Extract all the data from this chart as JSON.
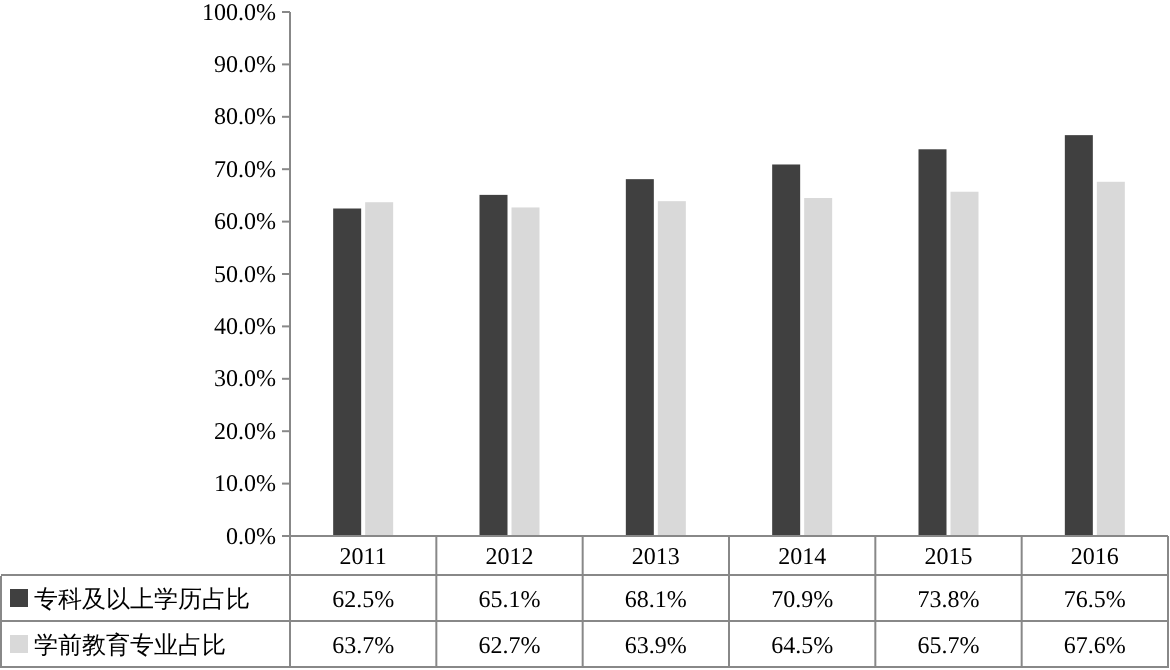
{
  "chart_data": {
    "type": "bar",
    "categories": [
      "2011",
      "2012",
      "2013",
      "2014",
      "2015",
      "2016"
    ],
    "series": [
      {
        "name": "专科及以上学历占比",
        "color": "#404040",
        "values": [
          62.5,
          65.1,
          68.1,
          70.9,
          73.8,
          76.5
        ],
        "value_labels": [
          "62.5%",
          "65.1%",
          "68.1%",
          "70.9%",
          "73.8%",
          "76.5%"
        ]
      },
      {
        "name": "学前教育专业占比",
        "color": "#d9d9d9",
        "values": [
          63.7,
          62.7,
          63.9,
          64.5,
          65.7,
          67.6
        ],
        "value_labels": [
          "63.7%",
          "62.7%",
          "63.9%",
          "64.5%",
          "65.7%",
          "67.6%"
        ]
      }
    ],
    "ylim": [
      0,
      100
    ],
    "yticks": [
      {
        "value": 0,
        "label": "0.0%"
      },
      {
        "value": 10,
        "label": "10.0%"
      },
      {
        "value": 20,
        "label": "20.0%"
      },
      {
        "value": 30,
        "label": "30.0%"
      },
      {
        "value": 40,
        "label": "40.0%"
      },
      {
        "value": 50,
        "label": "50.0%"
      },
      {
        "value": 60,
        "label": "60.0%"
      },
      {
        "value": 70,
        "label": "70.0%"
      },
      {
        "value": 80,
        "label": "80.0%"
      },
      {
        "value": 90,
        "label": "90.0%"
      },
      {
        "value": 100,
        "label": "100.0%"
      }
    ],
    "legend": "bottom"
  }
}
